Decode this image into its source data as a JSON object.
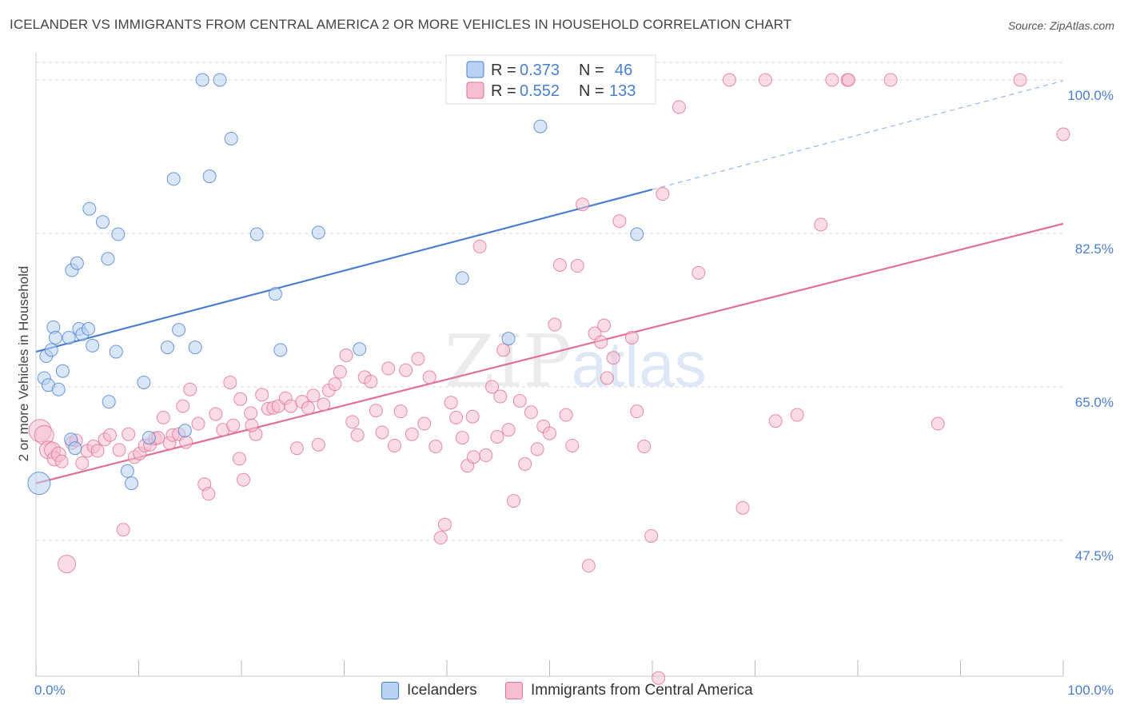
{
  "title": "ICELANDER VS IMMIGRANTS FROM CENTRAL AMERICA 2 OR MORE VEHICLES IN HOUSEHOLD CORRELATION CHART",
  "source": "Source: ZipAtlas.com",
  "watermark": {
    "zip": "ZIP",
    "atlas": "atlas"
  },
  "colors": {
    "blue": "#4a7fcf",
    "blue_fill": "#b9d2f3",
    "pink": "#e0709a",
    "pink_fill": "#f6bfd0",
    "grid": "#d8d8d8"
  },
  "legend_box": {
    "rows": [
      {
        "r_label": "R = ",
        "r_value": "0.373",
        "n_label": "N = ",
        "n_value": "46"
      },
      {
        "r_label": "R = ",
        "r_value": "0.552",
        "n_label": "N = ",
        "n_value": "133"
      }
    ]
  },
  "bottom_legend": [
    "Icelanders",
    "Immigrants from Central America"
  ],
  "chart_data": {
    "type": "scatter",
    "title": "ICELANDER VS IMMIGRANTS FROM CENTRAL AMERICA 2 OR MORE VEHICLES IN HOUSEHOLD CORRELATION CHART",
    "xlabel": "",
    "ylabel": "2 or more Vehicles in Household",
    "xlim": [
      0,
      100
    ],
    "ylim": [
      32,
      102
    ],
    "x_tick_labels": [
      "0.0%",
      "100.0%"
    ],
    "y_ticks": [
      47.5,
      65.0,
      82.5,
      100.0
    ],
    "y_tick_labels": [
      "47.5%",
      "65.0%",
      "82.5%",
      "100.0%"
    ],
    "x_minor_ticks": [
      0,
      10,
      20,
      30,
      40,
      50,
      60,
      70,
      80,
      90,
      100
    ],
    "grid": true,
    "legend_position": "top-center",
    "series": [
      {
        "name": "Icelanders",
        "color": "#4a7fcf",
        "fill": "#b9d2f3",
        "r": 0.373,
        "n": 46,
        "trend": {
          "x0": 0,
          "y0": 69.0,
          "x1": 60,
          "y1": 87.5,
          "dash_to": 100,
          "dash_y": 99.9
        },
        "points": [
          [
            0.3,
            54.0,
            14
          ],
          [
            0.8,
            66.0,
            8
          ],
          [
            1.0,
            68.5,
            8
          ],
          [
            1.2,
            65.2,
            8
          ],
          [
            1.5,
            69.2,
            8
          ],
          [
            1.7,
            71.8,
            8
          ],
          [
            1.9,
            70.6,
            8
          ],
          [
            2.2,
            64.7,
            8
          ],
          [
            2.6,
            66.8,
            8
          ],
          [
            3.2,
            70.6,
            8
          ],
          [
            3.4,
            59.0,
            8
          ],
          [
            3.5,
            78.3,
            8
          ],
          [
            3.8,
            58.0,
            8
          ],
          [
            4.0,
            79.1,
            8
          ],
          [
            4.2,
            71.6,
            8
          ],
          [
            4.5,
            71.0,
            8
          ],
          [
            5.1,
            71.6,
            8
          ],
          [
            5.2,
            85.3,
            8
          ],
          [
            5.5,
            69.7,
            8
          ],
          [
            6.5,
            83.8,
            8
          ],
          [
            7.0,
            79.6,
            8
          ],
          [
            7.1,
            63.3,
            8
          ],
          [
            7.8,
            69.0,
            8
          ],
          [
            8.0,
            82.4,
            8
          ],
          [
            8.9,
            55.4,
            8
          ],
          [
            9.3,
            54.0,
            8
          ],
          [
            10.5,
            65.5,
            8
          ],
          [
            11.0,
            59.2,
            8
          ],
          [
            12.8,
            69.5,
            8
          ],
          [
            13.4,
            88.7,
            8
          ],
          [
            13.9,
            71.5,
            8
          ],
          [
            14.5,
            60.0,
            8
          ],
          [
            15.5,
            69.5,
            8
          ],
          [
            16.2,
            100.0,
            8
          ],
          [
            16.9,
            89.0,
            8
          ],
          [
            17.9,
            100.0,
            8
          ],
          [
            19.0,
            93.3,
            8
          ],
          [
            21.5,
            82.4,
            8
          ],
          [
            23.3,
            75.6,
            8
          ],
          [
            23.8,
            69.2,
            8
          ],
          [
            27.5,
            82.6,
            8
          ],
          [
            31.5,
            69.3,
            8
          ],
          [
            41.5,
            77.4,
            8
          ],
          [
            46.0,
            70.5,
            8
          ],
          [
            49.1,
            94.7,
            8
          ],
          [
            58.5,
            82.4,
            8
          ]
        ]
      },
      {
        "name": "Immigrants from Central America",
        "color": "#e0709a",
        "fill": "#f6bfd0",
        "r": 0.552,
        "n": 133,
        "trend": {
          "x0": 0,
          "y0": 54.0,
          "x1": 100,
          "y1": 83.6
        },
        "points": [
          [
            0.4,
            60.0,
            14
          ],
          [
            0.8,
            59.5,
            12
          ],
          [
            1.2,
            57.8,
            11
          ],
          [
            1.6,
            57.8,
            10
          ],
          [
            1.8,
            56.8,
            9
          ],
          [
            2.2,
            57.3,
            9
          ],
          [
            2.5,
            56.5,
            8
          ],
          [
            3.0,
            44.8,
            11
          ],
          [
            3.5,
            58.6,
            8
          ],
          [
            3.9,
            58.9,
            8
          ],
          [
            4.5,
            56.3,
            8
          ],
          [
            5.0,
            57.7,
            8
          ],
          [
            5.6,
            58.2,
            8
          ],
          [
            6.0,
            57.7,
            8
          ],
          [
            6.7,
            59.0,
            8
          ],
          [
            7.2,
            59.5,
            8
          ],
          [
            8.1,
            57.8,
            8
          ],
          [
            8.5,
            48.7,
            8
          ],
          [
            9.0,
            59.6,
            8
          ],
          [
            9.6,
            57.0,
            8
          ],
          [
            10.1,
            57.4,
            8
          ],
          [
            10.6,
            58.3,
            8
          ],
          [
            11.1,
            58.4,
            8
          ],
          [
            11.6,
            59.1,
            8
          ],
          [
            11.9,
            59.2,
            8
          ],
          [
            12.4,
            61.5,
            8
          ],
          [
            13.0,
            58.6,
            8
          ],
          [
            13.3,
            59.5,
            8
          ],
          [
            13.9,
            59.6,
            8
          ],
          [
            14.3,
            62.8,
            8
          ],
          [
            14.6,
            58.7,
            8
          ],
          [
            15.0,
            64.7,
            8
          ],
          [
            15.8,
            60.8,
            8
          ],
          [
            16.4,
            53.9,
            8
          ],
          [
            16.8,
            52.8,
            8
          ],
          [
            17.5,
            61.9,
            8
          ],
          [
            18.2,
            60.1,
            8
          ],
          [
            18.9,
            65.5,
            8
          ],
          [
            19.2,
            60.6,
            8
          ],
          [
            19.8,
            56.8,
            8
          ],
          [
            20.2,
            54.4,
            8
          ],
          [
            20.9,
            62.0,
            8
          ],
          [
            21.4,
            59.6,
            8
          ],
          [
            22.0,
            64.1,
            8
          ],
          [
            22.6,
            62.5,
            8
          ],
          [
            23.1,
            62.6,
            8
          ],
          [
            23.6,
            62.8,
            8
          ],
          [
            24.3,
            63.7,
            8
          ],
          [
            24.8,
            62.8,
            8
          ],
          [
            25.4,
            58.0,
            8
          ],
          [
            25.9,
            63.3,
            8
          ],
          [
            26.5,
            62.6,
            8
          ],
          [
            27.0,
            64.0,
            8
          ],
          [
            27.5,
            58.4,
            8
          ],
          [
            28.0,
            63.0,
            8
          ],
          [
            28.5,
            64.6,
            8
          ],
          [
            29.1,
            65.3,
            8
          ],
          [
            29.6,
            66.7,
            8
          ],
          [
            30.2,
            68.6,
            8
          ],
          [
            30.8,
            61.0,
            8
          ],
          [
            31.3,
            59.5,
            8
          ],
          [
            32.0,
            66.1,
            8
          ],
          [
            32.6,
            65.6,
            8
          ],
          [
            33.1,
            62.3,
            8
          ],
          [
            33.7,
            59.8,
            8
          ],
          [
            34.3,
            67.1,
            8
          ],
          [
            34.9,
            58.3,
            8
          ],
          [
            35.5,
            62.2,
            8
          ],
          [
            36.0,
            66.9,
            8
          ],
          [
            36.6,
            59.6,
            8
          ],
          [
            37.2,
            68.2,
            8
          ],
          [
            37.8,
            60.8,
            8
          ],
          [
            38.3,
            66.1,
            8
          ],
          [
            38.9,
            58.2,
            8
          ],
          [
            39.4,
            47.8,
            8
          ],
          [
            39.8,
            49.3,
            8
          ],
          [
            40.4,
            63.2,
            8
          ],
          [
            40.9,
            61.5,
            8
          ],
          [
            41.5,
            59.2,
            8
          ],
          [
            42.0,
            56.0,
            8
          ],
          [
            42.6,
            57.0,
            8
          ],
          [
            43.2,
            81.0,
            8
          ],
          [
            43.8,
            57.2,
            8
          ],
          [
            44.4,
            65.0,
            8
          ],
          [
            44.9,
            59.3,
            8
          ],
          [
            45.5,
            69.2,
            8
          ],
          [
            46.0,
            60.1,
            8
          ],
          [
            46.5,
            52.0,
            8
          ],
          [
            47.1,
            63.4,
            8
          ],
          [
            47.6,
            56.2,
            8
          ],
          [
            48.2,
            62.1,
            8
          ],
          [
            48.8,
            57.9,
            8
          ],
          [
            49.4,
            60.5,
            8
          ],
          [
            50.0,
            59.7,
            8
          ],
          [
            50.5,
            72.1,
            8
          ],
          [
            51.0,
            78.9,
            8
          ],
          [
            51.6,
            61.8,
            8
          ],
          [
            52.2,
            58.3,
            8
          ],
          [
            52.7,
            78.8,
            8
          ],
          [
            53.2,
            85.8,
            8
          ],
          [
            53.8,
            44.6,
            8
          ],
          [
            54.4,
            71.1,
            8
          ],
          [
            55.0,
            70.1,
            8
          ],
          [
            55.6,
            66.0,
            8
          ],
          [
            56.2,
            68.3,
            8
          ],
          [
            56.8,
            83.9,
            8
          ],
          [
            57.4,
            100.0,
            8
          ],
          [
            58.0,
            70.6,
            8
          ],
          [
            58.5,
            62.2,
            8
          ],
          [
            59.2,
            58.2,
            8
          ],
          [
            59.9,
            48.0,
            8
          ],
          [
            60.6,
            31.8,
            8
          ],
          [
            62.6,
            96.9,
            8
          ],
          [
            64.5,
            78.0,
            8
          ],
          [
            67.5,
            100.0,
            8
          ],
          [
            68.8,
            51.2,
            8
          ],
          [
            71.0,
            100.0,
            8
          ],
          [
            72.0,
            61.1,
            8
          ],
          [
            74.1,
            61.8,
            8
          ],
          [
            76.4,
            83.5,
            8
          ],
          [
            77.5,
            100.0,
            8
          ],
          [
            79.0,
            100.0,
            8
          ],
          [
            79.1,
            100.0,
            8
          ],
          [
            83.2,
            100.0,
            8
          ],
          [
            87.8,
            60.8,
            8
          ],
          [
            95.8,
            100.0,
            8
          ],
          [
            100.0,
            93.8,
            8
          ],
          [
            61.0,
            87.0,
            8
          ],
          [
            42.5,
            61.6,
            8
          ],
          [
            45.2,
            63.9,
            8
          ],
          [
            55.3,
            72.0,
            8
          ],
          [
            21.0,
            60.6,
            8
          ],
          [
            19.9,
            63.6,
            8
          ]
        ]
      }
    ]
  }
}
